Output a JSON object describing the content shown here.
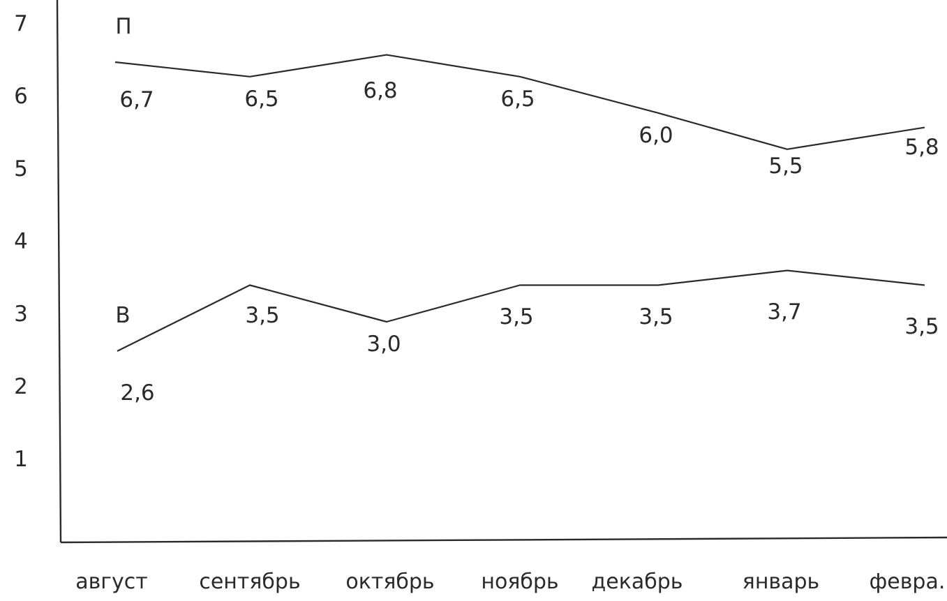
{
  "chart_data": {
    "type": "line",
    "categories": [
      "август",
      "сентябрь",
      "октябрь",
      "ноябрь",
      "декабрь",
      "январь",
      "февра."
    ],
    "ylim": [
      0,
      7
    ],
    "y_ticks": [
      "1",
      "2",
      "3",
      "4",
      "5",
      "6",
      "7"
    ],
    "grid": false,
    "series": [
      {
        "name": "П",
        "values": [
          6.7,
          6.5,
          6.8,
          6.5,
          6.0,
          5.5,
          5.8
        ],
        "labels": [
          "6,7",
          "6,5",
          "6,8",
          "6,5",
          "6,0",
          "5,5",
          "5,8"
        ]
      },
      {
        "name": "В",
        "values": [
          2.6,
          3.5,
          3.0,
          3.5,
          3.5,
          3.7,
          3.5
        ],
        "labels": [
          "2,6",
          "3,5",
          "3,0",
          "3,5",
          "3,5",
          "3,7",
          "3,5"
        ]
      }
    ]
  }
}
